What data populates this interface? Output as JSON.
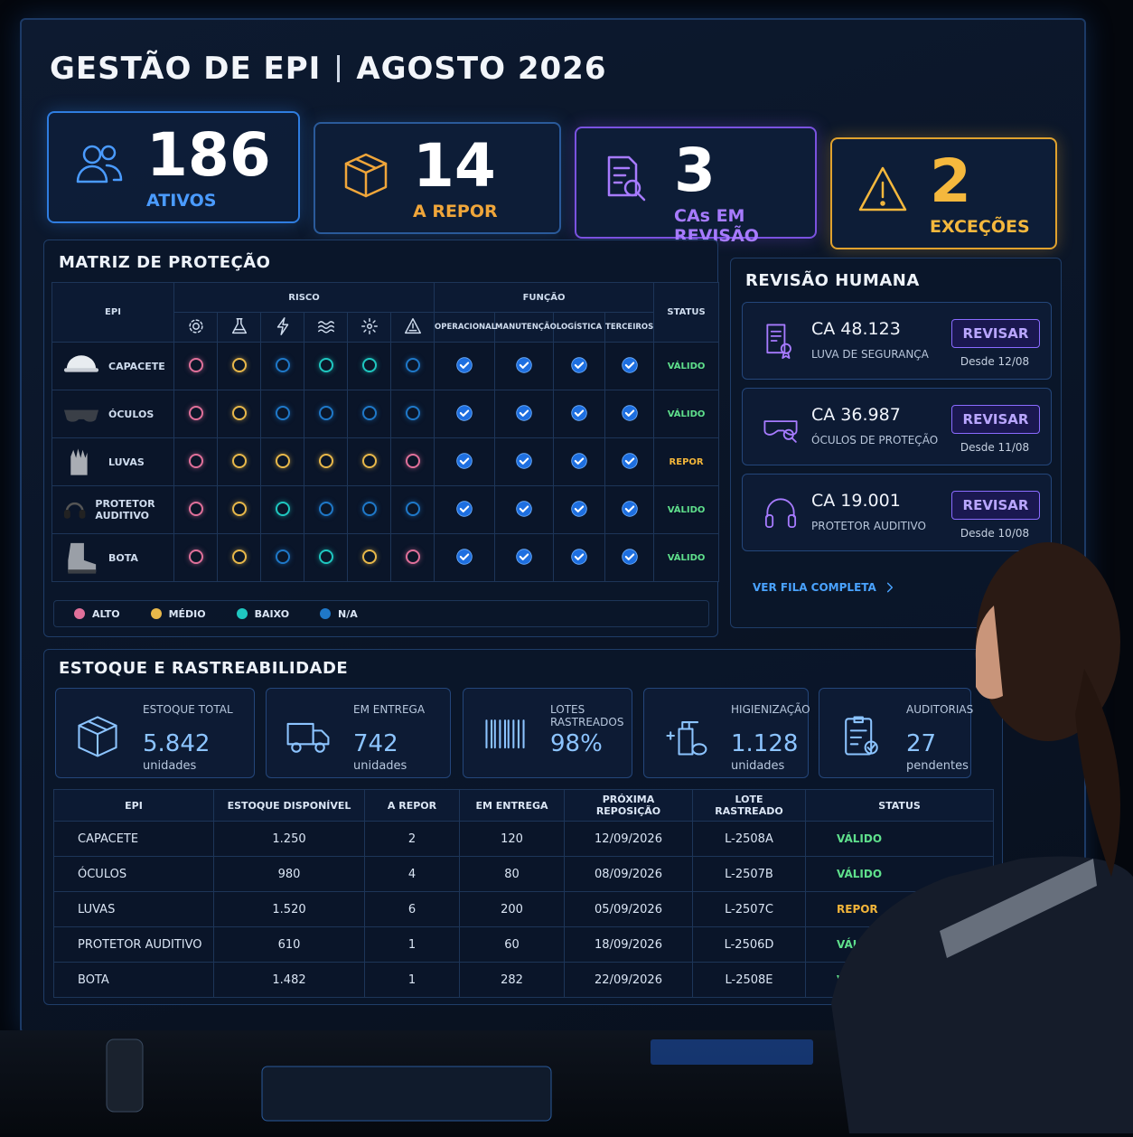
{
  "header": {
    "title": "GESTÃO DE EPI",
    "period": "AGOSTO 2026"
  },
  "kpis": [
    {
      "value": 186,
      "label": "ATIVOS",
      "color": "#4a9bff",
      "border": "#2f7de0",
      "value_color": "#ffffff"
    },
    {
      "value": 14,
      "label": "A REPOR",
      "color": "#f0a63a",
      "border": "#2a5a9a",
      "value_color": "#ffffff"
    },
    {
      "value": 3,
      "label": "CAs EM REVISÃO",
      "color": "#a77bff",
      "border": "#7a52e0",
      "value_color": "#ffffff"
    },
    {
      "value": 2,
      "label": "EXCEÇÕES",
      "color": "#f5b83d",
      "border": "#e0a22e",
      "value_color": "#f5b83d"
    }
  ],
  "status_colors": {
    "VÁLIDO": "#5fe08c",
    "REPOR": "#f2b53a"
  },
  "matrix": {
    "title": "MATRIZ DE PROTEÇÃO",
    "headers": {
      "epi": "EPI",
      "risk": "RISCO",
      "function": "FUNÇÃO",
      "status": "STATUS"
    },
    "functions": [
      "OPERACIONAL",
      "MANUTENÇÃO",
      "LOGÍSTICA",
      "TERCEIROS"
    ],
    "rows": [
      {
        "name": "CAPACETE",
        "risks": [
          "ALTO",
          "MÉDIO",
          "N/A",
          "BAIXO",
          "BAIXO",
          "N/A"
        ],
        "functions": [
          true,
          true,
          true,
          true
        ],
        "status": "VÁLIDO"
      },
      {
        "name": "ÓCULOS",
        "risks": [
          "ALTO",
          "MÉDIO",
          "N/A",
          "N/A",
          "N/A",
          "N/A"
        ],
        "functions": [
          true,
          true,
          true,
          true
        ],
        "status": "VÁLIDO"
      },
      {
        "name": "LUVAS",
        "risks": [
          "ALTO",
          "MÉDIO",
          "MÉDIO",
          "MÉDIO",
          "MÉDIO",
          "ALTO"
        ],
        "functions": [
          true,
          true,
          true,
          true
        ],
        "status": "REPOR"
      },
      {
        "name": "PROTETOR AUDITIVO",
        "risks": [
          "ALTO",
          "MÉDIO",
          "BAIXO",
          "N/A",
          "N/A",
          "N/A"
        ],
        "functions": [
          true,
          true,
          true,
          true
        ],
        "status": "VÁLIDO"
      },
      {
        "name": "BOTA",
        "risks": [
          "ALTO",
          "MÉDIO",
          "N/A",
          "BAIXO",
          "MÉDIO",
          "ALTO"
        ],
        "functions": [
          true,
          true,
          true,
          true
        ],
        "status": "VÁLIDO"
      }
    ],
    "legend": [
      {
        "label": "ALTO",
        "color": "#e0709a"
      },
      {
        "label": "MÉDIO",
        "color": "#e8b84a"
      },
      {
        "label": "BAIXO",
        "color": "#1fc7c0"
      },
      {
        "label": "N/A",
        "color": "#1f78c8"
      }
    ]
  },
  "review": {
    "title": "REVISÃO HUMANA",
    "items": [
      {
        "ca": "CA 48.123",
        "name": "LUVA DE SEGURANÇA",
        "action": "REVISAR",
        "since": "Desde 12/08"
      },
      {
        "ca": "CA 36.987",
        "name": "ÓCULOS DE PROTEÇÃO",
        "action": "REVISAR",
        "since": "Desde 11/08"
      },
      {
        "ca": "CA 19.001",
        "name": "PROTETOR AUDITIVO",
        "action": "REVISAR",
        "since": "Desde 10/08"
      }
    ],
    "link": "VER FILA COMPLETA"
  },
  "stock": {
    "title": "ESTOQUE E RASTREABILIDADE",
    "cards": [
      {
        "label": "ESTOQUE TOTAL",
        "value": "5.842",
        "unit": "unidades"
      },
      {
        "label": "EM ENTREGA",
        "value": "742",
        "unit": "unidades"
      },
      {
        "label": "LOTES RASTREADOS",
        "value": "98%"
      },
      {
        "label": "HIGIENIZAÇÃO",
        "value": "1.128",
        "unit": "unidades"
      },
      {
        "label": "AUDITORIAS",
        "value": "27",
        "unit": "pendentes"
      }
    ],
    "table": {
      "headers": [
        "EPI",
        "ESTOQUE DISPONÍVEL",
        "A REPOR",
        "EM ENTREGA",
        "PRÓXIMA REPOSIÇÃO",
        "LOTE RASTREADO",
        "STATUS"
      ],
      "rows": [
        [
          "CAPACETE",
          "1.250",
          "2",
          "120",
          "12/09/2026",
          "L-2508A",
          "VÁLIDO"
        ],
        [
          "ÓCULOS",
          "980",
          "4",
          "80",
          "08/09/2026",
          "L-2507B",
          "VÁLIDO"
        ],
        [
          "LUVAS",
          "1.520",
          "6",
          "200",
          "05/09/2026",
          "L-2507C",
          "REPOR"
        ],
        [
          "PROTETOR AUDITIVO",
          "610",
          "1",
          "60",
          "18/09/2026",
          "L-2506D",
          "VÁLIDO"
        ],
        [
          "BOTA",
          "1.482",
          "1",
          "282",
          "22/09/2026",
          "L-2508E",
          "VÁLIDO"
        ]
      ]
    }
  }
}
